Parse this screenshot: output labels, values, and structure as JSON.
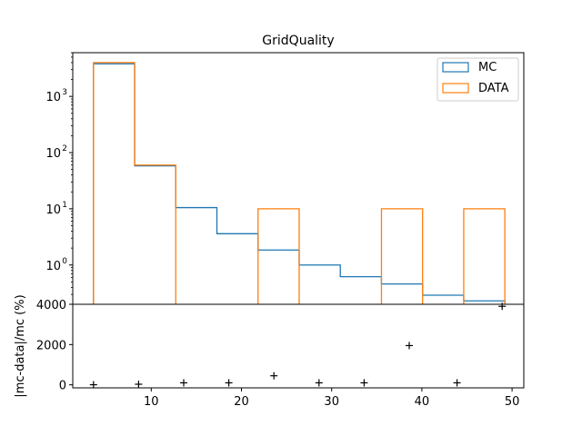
{
  "chart_data": [
    {
      "type": "histogram-step",
      "title": "GridQuality",
      "yscale": "log",
      "xlim": [
        1.3,
        51.3
      ],
      "ylim": [
        0.2,
        6000
      ],
      "yticks": [
        {
          "value": 1,
          "base": "10",
          "exp": "0"
        },
        {
          "value": 10,
          "base": "10",
          "exp": "1"
        },
        {
          "value": 100,
          "base": "10",
          "exp": "2"
        },
        {
          "value": 1000,
          "base": "10",
          "exp": "3"
        }
      ],
      "bin_edges": [
        3.6,
        8.16,
        12.72,
        17.28,
        21.84,
        26.4,
        30.96,
        35.52,
        40.08,
        44.64,
        49.2
      ],
      "legend_position": "top-right",
      "series": [
        {
          "name": "MC",
          "color": "#1f77b4",
          "values": [
            3800,
            58,
            10.5,
            3.6,
            1.85,
            1.0,
            0.62,
            0.46,
            0.29,
            0.23
          ]
        },
        {
          "name": "DATA",
          "color": "#ff7f0e",
          "values": [
            4000,
            60,
            0,
            0,
            10,
            0,
            0,
            10,
            0,
            10
          ]
        }
      ]
    },
    {
      "type": "scatter",
      "ylabel": "|mc-data|/mc (%)",
      "marker": "+",
      "xlim": [
        1.3,
        51.3
      ],
      "ylim": [
        -150,
        4000
      ],
      "xticks": [
        10,
        20,
        30,
        40,
        50
      ],
      "yticks": [
        0,
        2000,
        4000
      ],
      "x": [
        3.6,
        8.6,
        13.6,
        18.6,
        23.6,
        28.6,
        33.6,
        38.6,
        43.9,
        48.9
      ],
      "y": [
        5,
        30,
        100,
        100,
        450,
        100,
        100,
        1950,
        100,
        3900
      ]
    }
  ]
}
